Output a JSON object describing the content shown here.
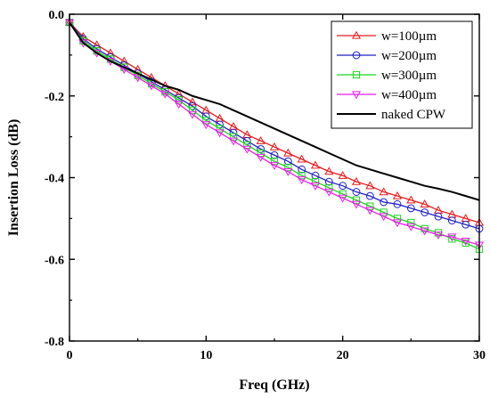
{
  "chart_data": {
    "type": "line",
    "xlabel": "Freq (GHz)",
    "ylabel": "Insertion Loss (dB)",
    "xlim": [
      0,
      30
    ],
    "ylim": [
      -0.8,
      0.0
    ],
    "xticks": [
      0,
      10,
      20,
      30
    ],
    "yticks": [
      0.0,
      -0.2,
      -0.4,
      -0.6,
      -0.8
    ],
    "xtick_labels": [
      "0",
      "10",
      "20",
      "30"
    ],
    "ytick_labels": [
      "0.0",
      "-0.2",
      "-0.4",
      "-0.6",
      "-0.8"
    ],
    "grid": false,
    "legend_position": "top-right",
    "x": [
      0,
      1,
      2,
      3,
      4,
      5,
      6,
      7,
      8,
      9,
      10,
      11,
      12,
      13,
      14,
      15,
      16,
      17,
      18,
      19,
      20,
      21,
      22,
      23,
      24,
      25,
      26,
      27,
      28,
      29,
      30
    ],
    "series": [
      {
        "name": "w=100µm",
        "color": "#e8191b",
        "marker": "triangle-up",
        "values": [
          -0.02,
          -0.055,
          -0.075,
          -0.095,
          -0.115,
          -0.135,
          -0.155,
          -0.175,
          -0.195,
          -0.215,
          -0.235,
          -0.255,
          -0.275,
          -0.295,
          -0.31,
          -0.325,
          -0.34,
          -0.355,
          -0.37,
          -0.385,
          -0.395,
          -0.41,
          -0.42,
          -0.435,
          -0.445,
          -0.455,
          -0.465,
          -0.48,
          -0.49,
          -0.5,
          -0.51
        ]
      },
      {
        "name": "w=200µm",
        "color": "#1f22c8",
        "marker": "circle",
        "values": [
          -0.02,
          -0.06,
          -0.085,
          -0.105,
          -0.125,
          -0.145,
          -0.165,
          -0.185,
          -0.205,
          -0.225,
          -0.25,
          -0.27,
          -0.29,
          -0.31,
          -0.33,
          -0.345,
          -0.36,
          -0.38,
          -0.395,
          -0.41,
          -0.42,
          -0.435,
          -0.445,
          -0.46,
          -0.465,
          -0.475,
          -0.485,
          -0.495,
          -0.505,
          -0.515,
          -0.525
        ]
      },
      {
        "name": "w=300µm",
        "color": "#1ad61a",
        "marker": "square",
        "values": [
          -0.02,
          -0.065,
          -0.09,
          -0.11,
          -0.13,
          -0.15,
          -0.17,
          -0.19,
          -0.21,
          -0.235,
          -0.26,
          -0.28,
          -0.3,
          -0.32,
          -0.34,
          -0.36,
          -0.375,
          -0.395,
          -0.41,
          -0.425,
          -0.44,
          -0.455,
          -0.47,
          -0.485,
          -0.5,
          -0.51,
          -0.525,
          -0.535,
          -0.55,
          -0.56,
          -0.575
        ]
      },
      {
        "name": "w=400µm",
        "color": "#e81ee8",
        "marker": "triangle-down",
        "values": [
          -0.02,
          -0.07,
          -0.095,
          -0.115,
          -0.135,
          -0.155,
          -0.175,
          -0.195,
          -0.22,
          -0.245,
          -0.27,
          -0.29,
          -0.31,
          -0.33,
          -0.35,
          -0.37,
          -0.385,
          -0.405,
          -0.42,
          -0.435,
          -0.45,
          -0.465,
          -0.48,
          -0.495,
          -0.51,
          -0.52,
          -0.53,
          -0.54,
          -0.545,
          -0.555,
          -0.565
        ]
      },
      {
        "name": "naked CPW",
        "color": "#000000",
        "marker": "none",
        "values": [
          -0.02,
          -0.07,
          -0.095,
          -0.115,
          -0.13,
          -0.145,
          -0.16,
          -0.175,
          -0.185,
          -0.2,
          -0.21,
          -0.22,
          -0.235,
          -0.25,
          -0.265,
          -0.28,
          -0.295,
          -0.31,
          -0.325,
          -0.34,
          -0.355,
          -0.37,
          -0.38,
          -0.39,
          -0.4,
          -0.41,
          -0.42,
          -0.427,
          -0.435,
          -0.445,
          -0.455
        ]
      }
    ]
  }
}
